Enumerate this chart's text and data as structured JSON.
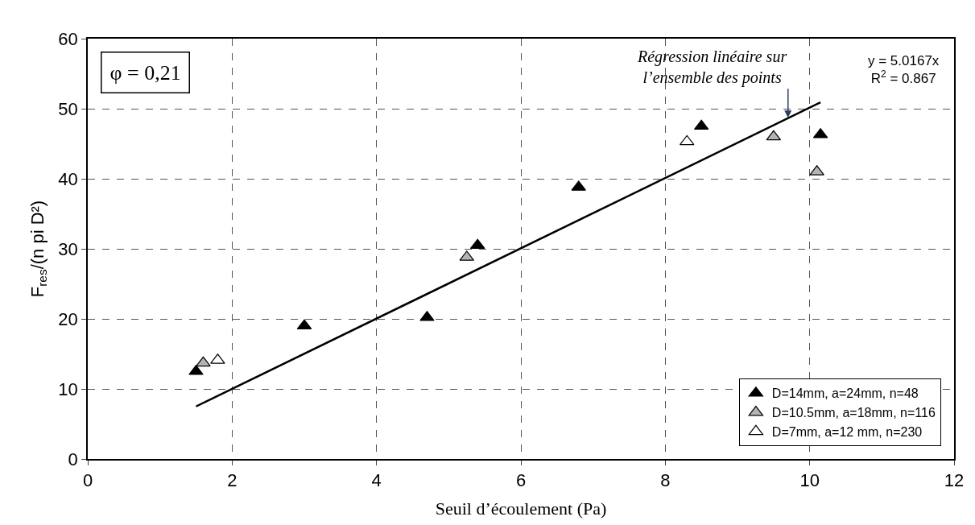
{
  "chart_data": {
    "type": "scatter",
    "xlabel": "Seuil d’écoulement (Pa)",
    "ylabel": "F$_{res}$/(n pi D²)",
    "xlim": [
      0,
      12
    ],
    "xticks": [
      0,
      2,
      4,
      6,
      8,
      10,
      12
    ],
    "ylim": [
      0,
      60
    ],
    "yticks": [
      0,
      10,
      20,
      30,
      40,
      50,
      60
    ],
    "grid": true,
    "legend": "bottom right",
    "marker": "triangle",
    "series": [
      {
        "name": "D=14mm, a=24mm, n=48",
        "color": "#000000",
        "x": [
          1.5,
          3.0,
          4.7,
          5.4,
          6.8,
          8.5,
          10.15
        ],
        "values": [
          12.5,
          19.0,
          20.2,
          30.5,
          38.8,
          47.5,
          46.3
        ]
      },
      {
        "name": "D=10.5mm, a=18mm, n=116",
        "color": "#b4b4b4",
        "x": [
          1.6,
          5.25,
          9.5,
          10.1
        ],
        "values": [
          13.7,
          28.8,
          46.0,
          41.0
        ]
      },
      {
        "name": "D=7mm, a=12 mm, n=230",
        "color": "#ffffff",
        "x": [
          1.8,
          8.3
        ],
        "values": [
          14.1,
          45.3
        ]
      },
      {
        "type": "line",
        "marker": "none",
        "color": "#000000",
        "x": [
          1.5,
          10.15
        ],
        "values": [
          7.5,
          50.9
        ]
      }
    ],
    "annotations": [
      "φ = 0,21",
      {
        "text": "Régression linéaire sur\nl’ensemble des points",
        "x": 9.7,
        "y": 48.7
      },
      "y = 5.0167x\nR$^{2}$ = 0.867"
    ]
  }
}
